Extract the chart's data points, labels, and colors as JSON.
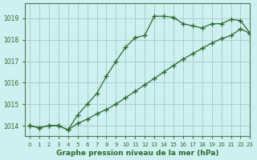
{
  "title": "Graphe pression niveau de la mer (hPa)",
  "bg_color": "#cdf0f0",
  "grid_color": "#b0cccc",
  "line_color": "#2d6a2d",
  "xlim": [
    -0.5,
    23
  ],
  "ylim": [
    1013.5,
    1019.7
  ],
  "yticks": [
    1014,
    1015,
    1016,
    1017,
    1018,
    1019
  ],
  "xticks": [
    0,
    1,
    2,
    3,
    4,
    5,
    6,
    7,
    8,
    9,
    10,
    11,
    12,
    13,
    14,
    15,
    16,
    17,
    18,
    19,
    20,
    21,
    22,
    23
  ],
  "series1_x": [
    0,
    1,
    2,
    3,
    4,
    5,
    6,
    7,
    8,
    9,
    10,
    11,
    12,
    13,
    14,
    15,
    16,
    17,
    18,
    19,
    20,
    21,
    22,
    23
  ],
  "series1_y": [
    1014.0,
    1013.9,
    1014.0,
    1014.0,
    1013.8,
    1014.5,
    1015.0,
    1015.5,
    1016.3,
    1017.0,
    1017.65,
    1018.1,
    1018.2,
    1019.1,
    1019.1,
    1019.05,
    1018.75,
    1018.65,
    1018.55,
    1018.75,
    1018.75,
    1018.95,
    1018.9,
    1018.3
  ],
  "series2_x": [
    0,
    1,
    2,
    3,
    4,
    5,
    6,
    7,
    8,
    9,
    10,
    11,
    12,
    13,
    14,
    15,
    16,
    17,
    18,
    19,
    20,
    21,
    22,
    23
  ],
  "series2_y": [
    1014.0,
    1013.9,
    1014.0,
    1014.0,
    1013.8,
    1014.1,
    1014.3,
    1014.55,
    1014.75,
    1015.0,
    1015.3,
    1015.6,
    1015.9,
    1016.2,
    1016.5,
    1016.8,
    1017.1,
    1017.35,
    1017.6,
    1017.85,
    1018.05,
    1018.2,
    1018.5,
    1018.3
  ]
}
